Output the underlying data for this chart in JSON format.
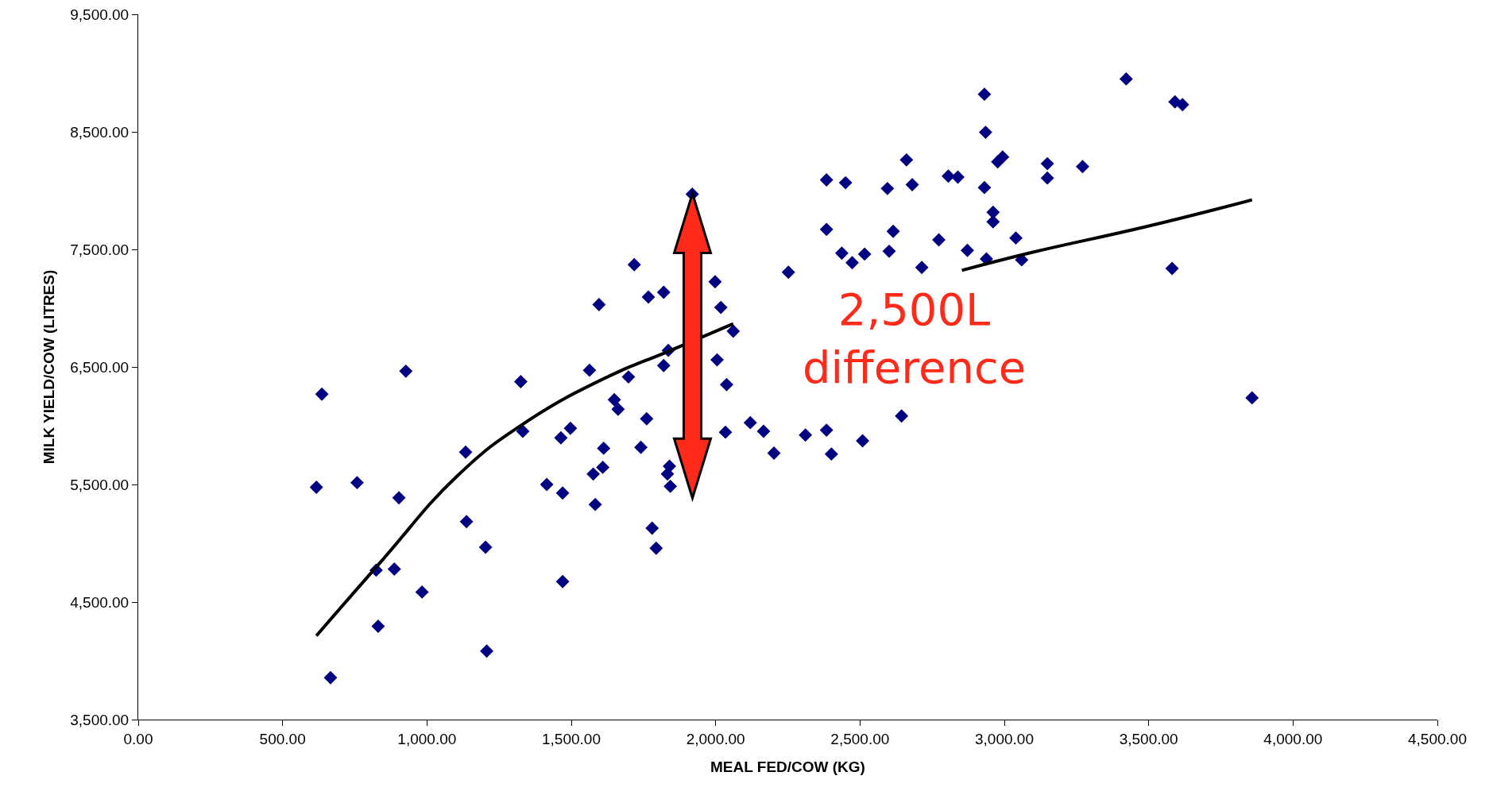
{
  "chart_data": {
    "type": "scatter",
    "xlabel": "MEAL FED/COW (KG)",
    "ylabel": "MILK YIELD/COW (LITRES)",
    "marker": "diamond",
    "grid": false,
    "xlim": [
      0,
      4500
    ],
    "xticks": [
      {
        "value": 0,
        "label": "0.00"
      },
      {
        "value": 500,
        "label": "500.00"
      },
      {
        "value": 1000,
        "label": "1,000.00"
      },
      {
        "value": 1500,
        "label": "1,500.00"
      },
      {
        "value": 2000,
        "label": "2,000.00"
      },
      {
        "value": 2500,
        "label": "2,500.00"
      },
      {
        "value": 3000,
        "label": "3,000.00"
      },
      {
        "value": 3500,
        "label": "3,500.00"
      },
      {
        "value": 4000,
        "label": "4,000.00"
      },
      {
        "value": 4500,
        "label": "4,500.00"
      }
    ],
    "ylim": [
      3500,
      9500
    ],
    "yticks": [
      {
        "value": 3500,
        "label": "3,500.00"
      },
      {
        "value": 4500,
        "label": "4,500.00"
      },
      {
        "value": 5500,
        "label": "5,500.00"
      },
      {
        "value": 6500,
        "label": "6,500.00"
      },
      {
        "value": 7500,
        "label": "7,500.00"
      },
      {
        "value": 8500,
        "label": "8,500.00"
      },
      {
        "value": 9500,
        "label": "9,500.00"
      }
    ],
    "annotations": [
      "2,500L\ndifference"
    ],
    "series": [
      {
        "color": "#000080",
        "x": [
          617,
          636,
          666,
          758,
          824,
          831,
          887,
          903,
          927,
          983,
          1134,
          1137,
          1203,
          1207,
          1325,
          1332,
          1415,
          1464,
          1470,
          1470,
          1497,
          1563,
          1576,
          1583,
          1596,
          1609,
          1612,
          1649,
          1662,
          1698,
          1718,
          1741,
          1761,
          1767,
          1780,
          1794,
          1820,
          1820,
          1836,
          1840,
          1833,
          1843,
          1919,
          1998,
          2005,
          2018,
          2038,
          2061,
          2034,
          2120,
          2166,
          2202,
          2311,
          2384,
          2401,
          2509,
          2644,
          2252,
          2384,
          2450,
          2384,
          2437,
          2473,
          2516,
          2601,
          2615,
          2595,
          2661,
          2681,
          2714,
          2773,
          2806,
          2839,
          2872,
          2931,
          2935,
          2931,
          2938,
          2961,
          2961,
          2977,
          2994,
          3040,
          3060,
          3149,
          3149,
          3271,
          3422,
          3581,
          3591,
          3617,
          3858
        ],
        "values": [
          5476,
          6269,
          3856,
          5516,
          4771,
          4294,
          4780,
          5387,
          6464,
          4585,
          5775,
          5184,
          4966,
          4083,
          6375,
          5953,
          5500,
          5897,
          5427,
          4674,
          5978,
          6472,
          5589,
          5330,
          7030,
          5646,
          5808,
          6221,
          6140,
          6415,
          7370,
          5816,
          6059,
          7095,
          5128,
          4958,
          6512,
          7135,
          6641,
          5655,
          5590,
          5484,
          7970,
          7225,
          6560,
          7006,
          6350,
          6804,
          5945,
          6026,
          5953,
          5767,
          5921,
          5962,
          5759,
          5872,
          6083,
          7306,
          8091,
          8067,
          7670,
          7468,
          7387,
          7460,
          7484,
          7654,
          8018,
          8261,
          8051,
          7346,
          7581,
          8123,
          8115,
          7492,
          8820,
          8496,
          8026,
          7419,
          7816,
          7735,
          8245,
          8286,
          7597,
          7411,
          8229,
          8107,
          8204,
          8950,
          7338,
          8755,
          8731,
          6237
        ]
      },
      {
        "type": "line",
        "color": "#000000",
        "line_style": "solid",
        "marker": "none",
        "x": [
          617,
          841,
          1105,
          1335,
          1632,
          1830,
          2061,
          2450,
          2853,
          3099,
          3492,
          3858
        ],
        "values": [
          4213,
          4844,
          5573,
          6018,
          6423,
          6626,
          6868,
          null,
          7322,
          7476,
          7694,
          7921
        ]
      }
    ]
  }
}
